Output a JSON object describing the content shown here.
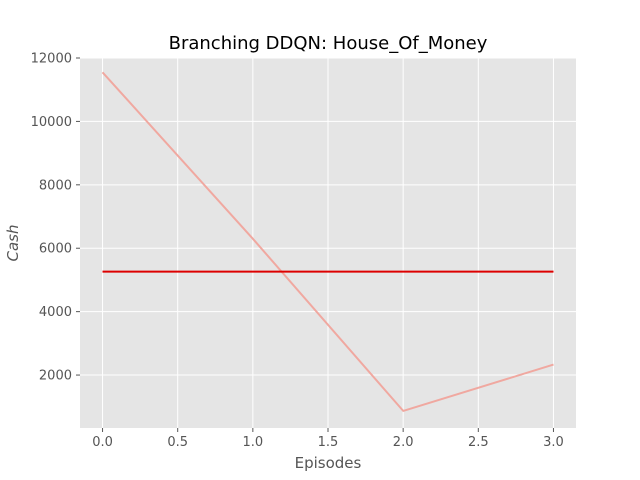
{
  "chart_data": {
    "type": "line",
    "title": "Branching DDQN: House_Of_Money",
    "xlabel": "Episodes",
    "ylabel": "Cash",
    "xlim": [
      -0.15,
      3.15
    ],
    "ylim": [
      330,
      12000
    ],
    "x_ticks": [
      0.0,
      0.5,
      1.0,
      1.5,
      2.0,
      2.5,
      3.0
    ],
    "x_tick_labels": [
      "0.0",
      "0.5",
      "1.0",
      "1.5",
      "2.0",
      "2.5",
      "3.0"
    ],
    "y_ticks": [
      2000,
      4000,
      6000,
      8000,
      10000,
      12000
    ],
    "y_tick_labels": [
      "2000",
      "4000",
      "6000",
      "8000",
      "10000",
      "12000"
    ],
    "grid": true,
    "background": "#e5e5e5",
    "series": [
      {
        "color": "#f0a8a0",
        "x": [
          0,
          1,
          2,
          3
        ],
        "y": [
          11550,
          6300,
          870,
          2330
        ]
      },
      {
        "color": "#dd0000",
        "x": [
          0,
          1,
          2,
          3
        ],
        "y": [
          5262,
          5262,
          5262,
          5262
        ]
      }
    ]
  }
}
